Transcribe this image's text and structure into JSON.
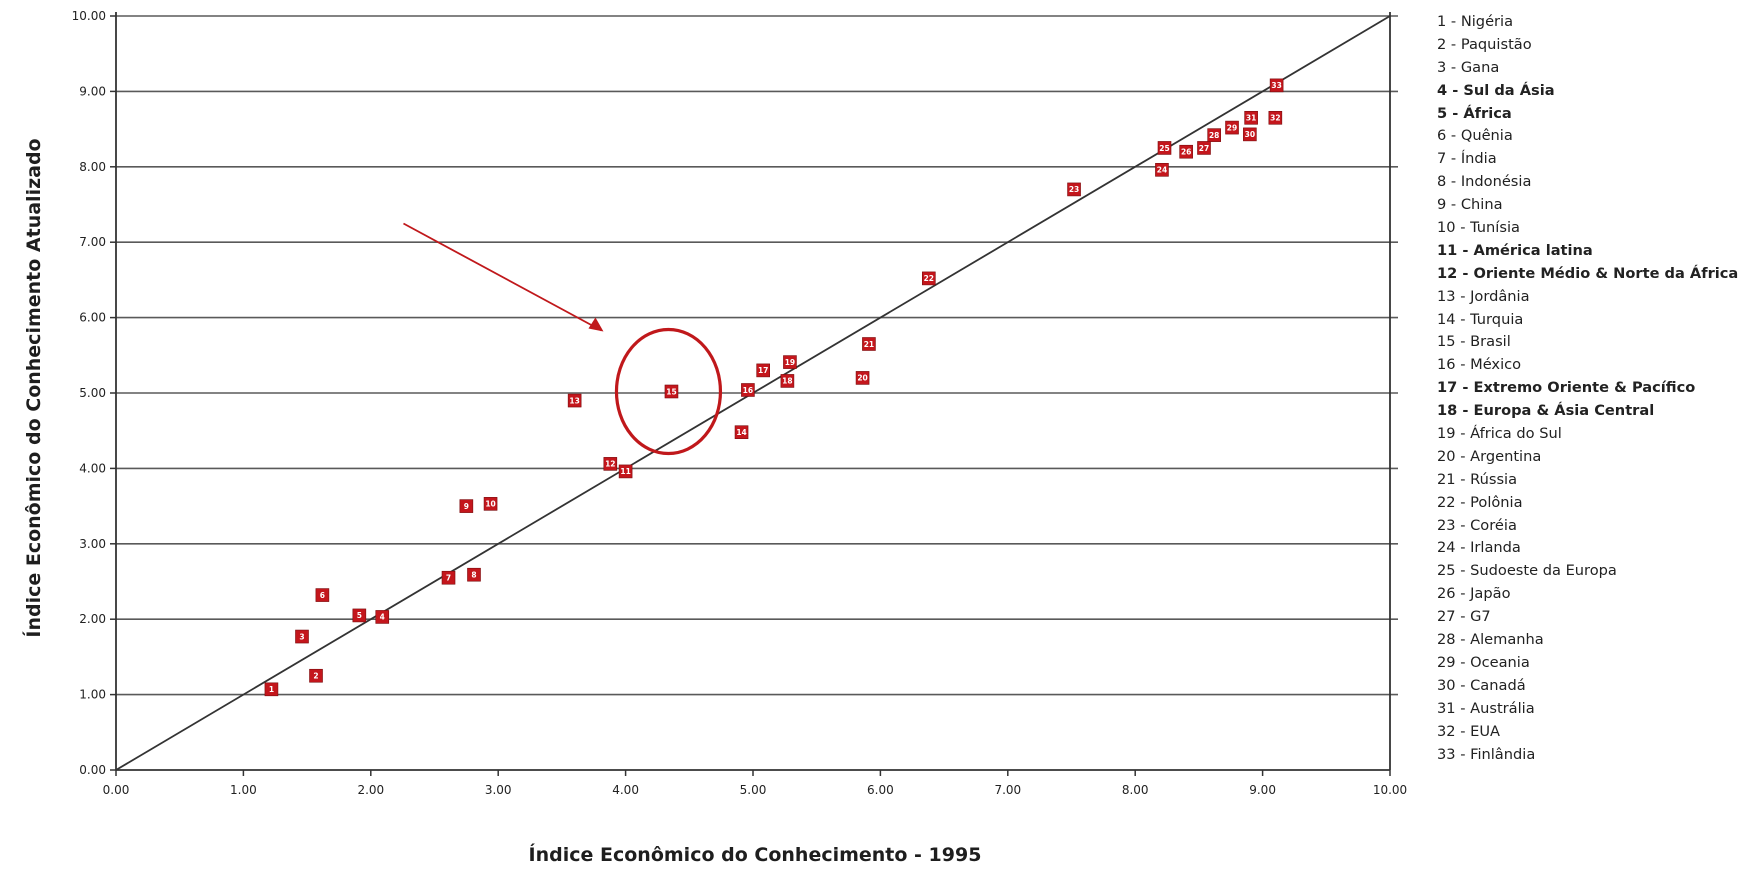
{
  "chart_data": {
    "type": "scatter",
    "xlabel": "Índice Econômico do Conhecimento - 1995",
    "ylabel": "Índice Econômico do Conhecimento Atualizado",
    "xlim": [
      0,
      10
    ],
    "ylim": [
      0,
      10
    ],
    "x_ticks": [
      "0.00",
      "1.00",
      "2.00",
      "3.00",
      "4.00",
      "5.00",
      "6.00",
      "7.00",
      "8.00",
      "9.00",
      "10.00"
    ],
    "y_ticks": [
      "0.00",
      "1.00",
      "2.00",
      "3.00",
      "4.00",
      "5.00",
      "6.00",
      "7.00",
      "8.00",
      "9.00",
      "10.00"
    ],
    "grid": "horizontal",
    "reference_line": {
      "x": [
        0,
        10
      ],
      "y": [
        0,
        10
      ]
    },
    "marker_color": "#c4161c",
    "annotation_color": "#c0181b",
    "highlighted_point": "15",
    "points": [
      {
        "label": "1",
        "x": 1.22,
        "y": 1.07
      },
      {
        "label": "2",
        "x": 1.57,
        "y": 1.25
      },
      {
        "label": "3",
        "x": 1.46,
        "y": 1.77
      },
      {
        "label": "4",
        "x": 2.09,
        "y": 2.03
      },
      {
        "label": "5",
        "x": 1.91,
        "y": 2.05
      },
      {
        "label": "6",
        "x": 1.62,
        "y": 2.32
      },
      {
        "label": "7",
        "x": 2.61,
        "y": 2.55
      },
      {
        "label": "8",
        "x": 2.81,
        "y": 2.59
      },
      {
        "label": "9",
        "x": 2.75,
        "y": 3.5
      },
      {
        "label": "10",
        "x": 2.94,
        "y": 3.53
      },
      {
        "label": "11",
        "x": 4.0,
        "y": 3.96
      },
      {
        "label": "12",
        "x": 3.88,
        "y": 4.06
      },
      {
        "label": "13",
        "x": 3.6,
        "y": 4.9
      },
      {
        "label": "14",
        "x": 4.91,
        "y": 4.48
      },
      {
        "label": "15",
        "x": 4.36,
        "y": 5.02
      },
      {
        "label": "16",
        "x": 4.96,
        "y": 5.04
      },
      {
        "label": "17",
        "x": 5.08,
        "y": 5.3
      },
      {
        "label": "18",
        "x": 5.27,
        "y": 5.16
      },
      {
        "label": "19",
        "x": 5.29,
        "y": 5.41
      },
      {
        "label": "20",
        "x": 5.86,
        "y": 5.2
      },
      {
        "label": "21",
        "x": 5.91,
        "y": 5.65
      },
      {
        "label": "22",
        "x": 6.38,
        "y": 6.52
      },
      {
        "label": "23",
        "x": 7.52,
        "y": 7.7
      },
      {
        "label": "24",
        "x": 8.21,
        "y": 7.96
      },
      {
        "label": "25",
        "x": 8.23,
        "y": 8.25
      },
      {
        "label": "26",
        "x": 8.4,
        "y": 8.2
      },
      {
        "label": "27",
        "x": 8.54,
        "y": 8.25
      },
      {
        "label": "28",
        "x": 8.62,
        "y": 8.42
      },
      {
        "label": "29",
        "x": 8.76,
        "y": 8.52
      },
      {
        "label": "30",
        "x": 8.9,
        "y": 8.43
      },
      {
        "label": "31",
        "x": 8.91,
        "y": 8.65
      },
      {
        "label": "32",
        "x": 9.1,
        "y": 8.65
      },
      {
        "label": "33",
        "x": 9.11,
        "y": 9.08
      }
    ],
    "legend": [
      {
        "text": "1 - Nigéria",
        "bold": false
      },
      {
        "text": "2 - Paquistão",
        "bold": false
      },
      {
        "text": "3 - Gana",
        "bold": false
      },
      {
        "text": "4 - Sul da Ásia",
        "bold": true
      },
      {
        "text": "5 - África",
        "bold": true
      },
      {
        "text": "6 - Quênia",
        "bold": false
      },
      {
        "text": "7 - Índia",
        "bold": false
      },
      {
        "text": "8 - Indonésia",
        "bold": false
      },
      {
        "text": "9 - China",
        "bold": false
      },
      {
        "text": "10 - Tunísia",
        "bold": false
      },
      {
        "text": "11 - América latina",
        "bold": true
      },
      {
        "text": "12 - Oriente Médio & Norte da África",
        "bold": true
      },
      {
        "text": "13 - Jordânia",
        "bold": false
      },
      {
        "text": "14 - Turquia",
        "bold": false
      },
      {
        "text": "15 - Brasil",
        "bold": false
      },
      {
        "text": "16 - México",
        "bold": false
      },
      {
        "text": "17 - Extremo Oriente & Pacífico",
        "bold": true
      },
      {
        "text": "18 - Europa & Ásia Central",
        "bold": true
      },
      {
        "text": "19 - África do Sul",
        "bold": false
      },
      {
        "text": "20 - Argentina",
        "bold": false
      },
      {
        "text": "21 - Rússia",
        "bold": false
      },
      {
        "text": "22 - Polônia",
        "bold": false
      },
      {
        "text": "23 - Coréia",
        "bold": false
      },
      {
        "text": "24 - Irlanda",
        "bold": false
      },
      {
        "text": "25 - Sudoeste da Europa",
        "bold": false
      },
      {
        "text": "26 - Japão",
        "bold": false
      },
      {
        "text": "27 - G7",
        "bold": false
      },
      {
        "text": "28 - Alemanha",
        "bold": false
      },
      {
        "text": "29 - Oceania",
        "bold": false
      },
      {
        "text": "30 - Canadá",
        "bold": false
      },
      {
        "text": "31 - Austrália",
        "bold": false
      },
      {
        "text": "32 - EUA",
        "bold": false
      },
      {
        "text": "33 - Finlândia",
        "bold": false
      }
    ]
  }
}
